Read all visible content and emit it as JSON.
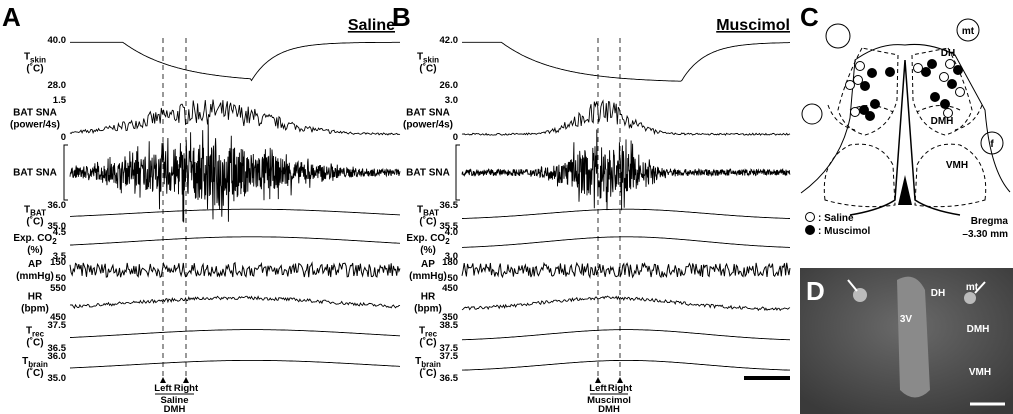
{
  "panel_a": {
    "letter": "A",
    "title": "Saline",
    "traces": [
      {
        "label": "T",
        "sub": "skin",
        "unit": "(˚C)",
        "ticks": [
          "40.0",
          "28.0"
        ]
      },
      {
        "label": "BAT SNA",
        "unit": "(power/4s)",
        "ticks": [
          "1.5",
          "0"
        ]
      },
      {
        "label": "BAT SNA"
      },
      {
        "label": "T",
        "sub": "BAT",
        "unit": "(˚C)",
        "ticks": [
          "36.0",
          "35.0"
        ]
      },
      {
        "label": "Exp. CO",
        "sub": "2",
        "unit": "(%)",
        "ticks": [
          "4.5",
          "3.5"
        ]
      },
      {
        "label": "AP",
        "unit": "(mmHg)",
        "ticks": [
          "150",
          "50"
        ]
      },
      {
        "label": "HR",
        "unit": "(bpm)",
        "ticks": [
          "550",
          "450"
        ]
      },
      {
        "label": "T",
        "sub": "rec",
        "unit": "(˚C)",
        "ticks": [
          "37.5",
          "36.5"
        ]
      },
      {
        "label": "T",
        "sub": "brain",
        "unit": "(˚C)",
        "ticks": [
          "36.0",
          "35.0"
        ]
      }
    ],
    "markers": [
      "Left",
      "Right"
    ],
    "treatment": [
      "Saline",
      "DMH"
    ]
  },
  "panel_b": {
    "letter": "B",
    "title": "Muscimol",
    "traces": [
      {
        "label": "T",
        "sub": "skin",
        "unit": "(˚C)",
        "ticks": [
          "42.0",
          "26.0"
        ]
      },
      {
        "label": "BAT SNA",
        "unit": "(power/4s)",
        "ticks": [
          "3.0",
          "0"
        ]
      },
      {
        "label": "BAT SNA"
      },
      {
        "label": "T",
        "sub": "BAT",
        "unit": "(˚C)",
        "ticks": [
          "36.5",
          "35.5"
        ]
      },
      {
        "label": "Exp. CO",
        "sub": "2",
        "unit": "(%)",
        "ticks": [
          "4.0",
          "3.0"
        ]
      },
      {
        "label": "AP",
        "unit": "(mmHg)",
        "ticks": [
          "180",
          "50"
        ]
      },
      {
        "label": "HR",
        "unit": "(bpm)",
        "ticks": [
          "450",
          "350"
        ]
      },
      {
        "label": "T",
        "sub": "rec",
        "unit": "(˚C)",
        "ticks": [
          "38.5",
          "37.5"
        ]
      },
      {
        "label": "T",
        "sub": "brain",
        "unit": "(˚C)",
        "ticks": [
          "37.5",
          "36.5"
        ]
      }
    ],
    "markers": [
      "Left",
      "Right"
    ],
    "treatment": [
      "Muscimol",
      "DMH"
    ]
  },
  "panel_c": {
    "letter": "C",
    "labels": [
      "mt",
      "DH",
      "DMH",
      "f",
      "VMH"
    ],
    "legend": [
      ": Saline",
      ": Muscimol"
    ],
    "bregma": [
      "Bregma",
      "–3.30 mm"
    ]
  },
  "panel_d": {
    "letter": "D",
    "labels": [
      "DH",
      "mt",
      "DMH",
      "3V",
      "VMH"
    ]
  }
}
